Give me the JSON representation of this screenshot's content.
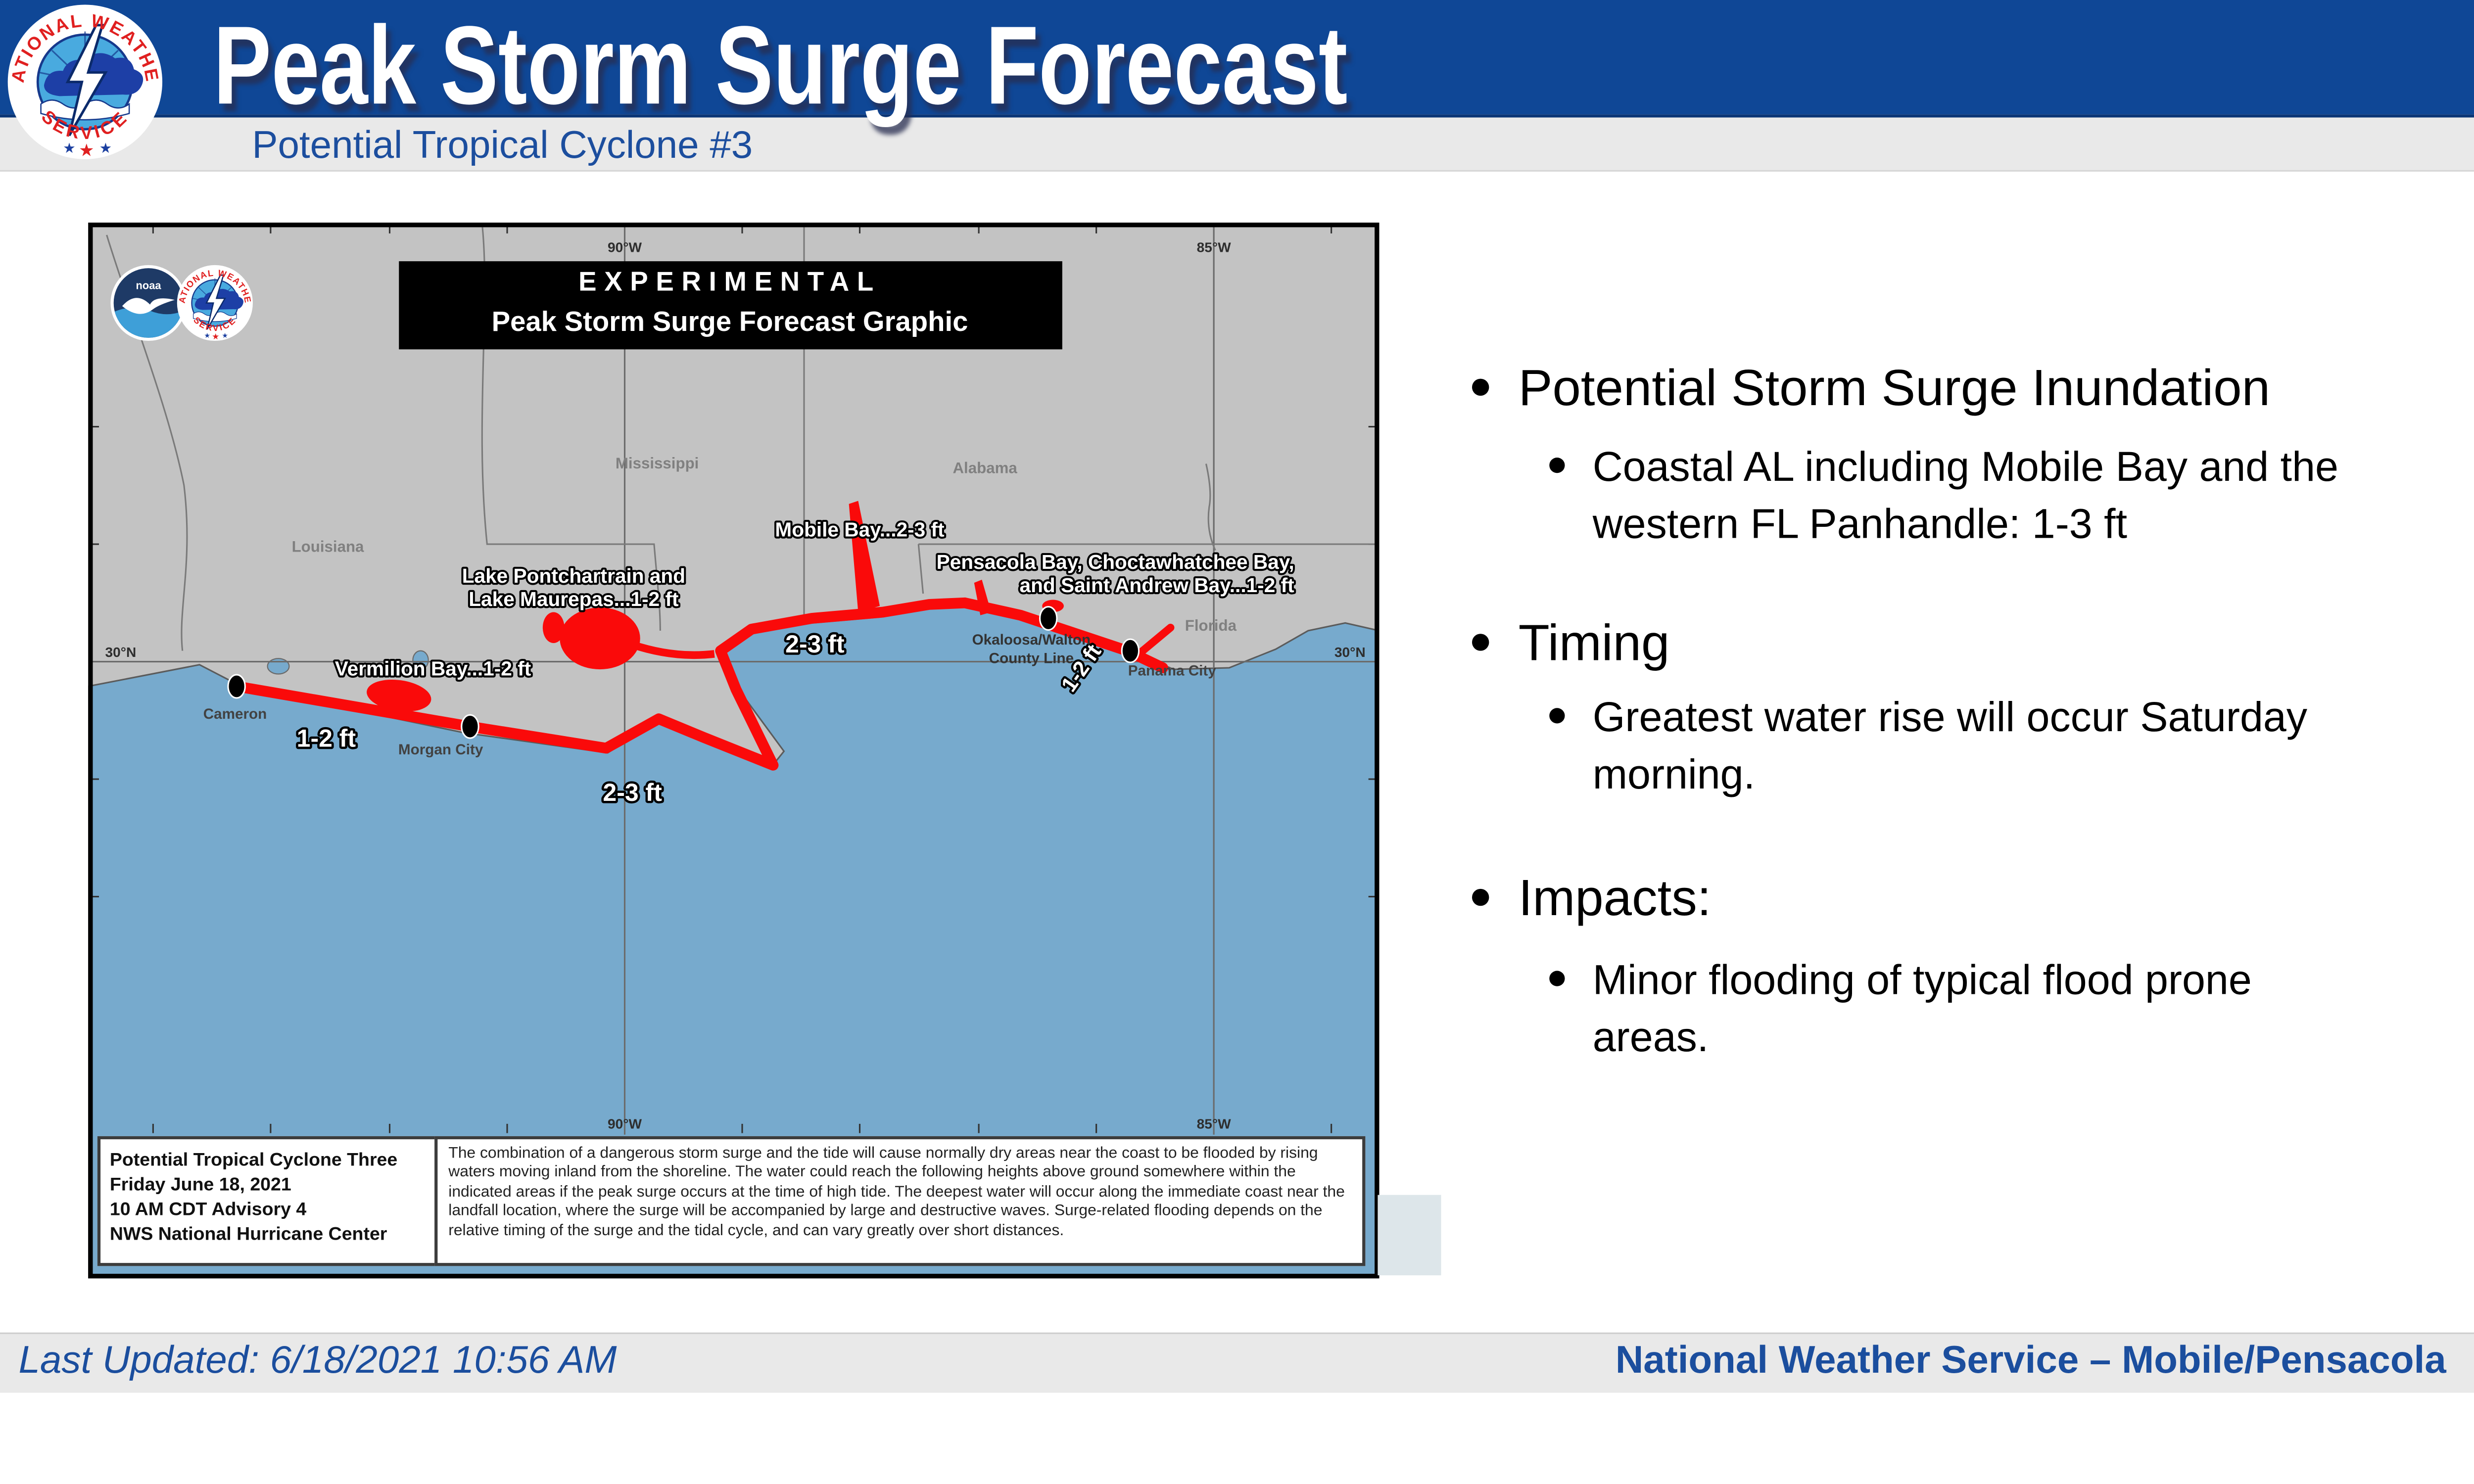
{
  "header": {
    "title": "Peak Storm Surge Forecast",
    "subtitle": "Potential Tropical Cyclone #3"
  },
  "map": {
    "banner": {
      "line1": "EXPERIMENTAL",
      "line2": "Peak Storm Surge Forecast Graphic"
    },
    "surge_labels": {
      "mobile_bay": "Mobile Bay...2-3 ft",
      "pensacola_line1": "Pensacola Bay, Choctawhatchee Bay,",
      "pensacola_line2": "and Saint Andrew Bay...1-2 ft",
      "pontchartrain_line1": "Lake Pontchartrain and",
      "pontchartrain_line2": "Lake Maurepas...1-2 ft",
      "vermilion": "Vermilion Bay...1-2 ft",
      "ft_1_2_west": "1-2 ft",
      "ft_2_3_south": "2-3 ft",
      "ft_2_3_east": "2-3 ft",
      "ft_1_2_rotated": "1-2 ft"
    },
    "place_labels": {
      "cameron": "Cameron",
      "morgan_city": "Morgan City",
      "panama_city": "Panama City",
      "okaloosa_line1": "Okaloosa/Walton",
      "okaloosa_line2": "County Line"
    },
    "state_labels": {
      "louisiana": "Louisiana",
      "mississippi": "Mississippi",
      "alabama": "Alabama",
      "florida": "Florida"
    },
    "grid_labels": {
      "lon_90_top": "90°W",
      "lon_85_top": "85°W",
      "lon_90_bottom": "90°W",
      "lon_85_bottom": "85°W",
      "lat_30_left": "30°N",
      "lat_30_right": "30°N"
    },
    "advisory_box": {
      "line1": "Potential Tropical Cyclone Three",
      "line2": "Friday June 18, 2021",
      "line3": "10 AM CDT Advisory 4",
      "line4": "NWS National Hurricane Center"
    },
    "disclaimer": "The combination of a dangerous storm surge and the tide will cause normally dry areas near the coast to be flooded by rising waters moving inland from the shoreline.  The water could reach the following heights above ground somewhere within the indicated areas if the peak surge occurs at the time of high tide.  The deepest water will occur along the immediate coast near the landfall location, where the surge will be accompanied by large and destructive waves.  Surge-related flooding depends on the relative timing of the surge and the tidal cycle, and can vary greatly over short distances.",
    "colors": {
      "water": "#77AACD",
      "land": "#C3C3C3",
      "surge_red": "#FA0A0A"
    }
  },
  "bullets": {
    "sections": [
      {
        "title": "Potential Storm Surge Inundation",
        "item": "Coastal AL including Mobile Bay and the western FL Panhandle: 1-3 ft"
      },
      {
        "title": "Timing",
        "item": "Greatest water rise will occur Saturday morning."
      },
      {
        "title": "Impacts:",
        "item": "Minor flooding of typical flood prone areas."
      }
    ]
  },
  "footer": {
    "last_updated": "Last Updated: 6/18/2021 10:56 AM",
    "office": "National Weather Service – Mobile/Pensacola"
  }
}
